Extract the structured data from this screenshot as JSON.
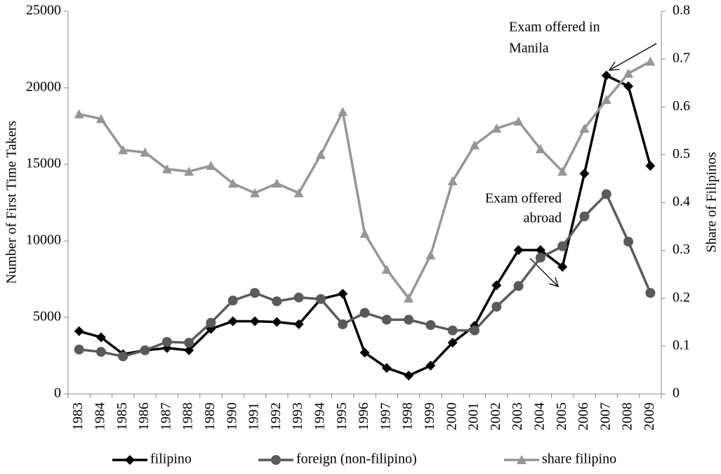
{
  "chart_data": {
    "type": "line",
    "y_label": "Number of First Time Takers",
    "y2_label": "Share of Filipinos",
    "categories": [
      "1983",
      "1984",
      "1985",
      "1986",
      "1987",
      "1988",
      "1989",
      "1990",
      "1991",
      "1992",
      "1993",
      "1994",
      "1995",
      "1996",
      "1997",
      "1998",
      "1999",
      "2000",
      "2001",
      "2002",
      "2003",
      "2004",
      "2005",
      "2006",
      "2007",
      "2008",
      "2009"
    ],
    "series": [
      {
        "name": "filipino",
        "color": "#000000",
        "marker": "diamond",
        "values": [
          4100,
          3700,
          2600,
          2850,
          3000,
          2850,
          4250,
          4750,
          4750,
          4700,
          4550,
          6200,
          6550,
          2700,
          1700,
          1200,
          1850,
          3350,
          4450,
          7100,
          9400,
          9400,
          8300,
          14400,
          20800,
          20100,
          14900
        ]
      },
      {
        "name": "foreign (non-filipino)",
        "color": "#5a5a5a",
        "marker": "circle",
        "values": [
          2900,
          2750,
          2450,
          2850,
          3400,
          3350,
          4650,
          6100,
          6600,
          6050,
          6300,
          6200,
          4550,
          5300,
          4850,
          4850,
          4500,
          4150,
          4150,
          5700,
          7050,
          8900,
          9650,
          11600,
          13050,
          9950,
          6600
        ]
      },
      {
        "name": "share filipino",
        "color": "#969696",
        "marker": "triangle",
        "axis": "y2",
        "values": [
          0.585,
          0.575,
          0.51,
          0.505,
          0.47,
          0.465,
          0.477,
          0.44,
          0.42,
          0.44,
          0.42,
          0.5,
          0.59,
          0.335,
          0.26,
          0.2,
          0.29,
          0.445,
          0.52,
          0.555,
          0.57,
          0.512,
          0.465,
          0.555,
          0.615,
          0.67,
          0.695
        ]
      }
    ],
    "ylim": [
      0,
      25000
    ],
    "yticks": [
      0,
      5000,
      10000,
      15000,
      20000,
      25000
    ],
    "y2lim": [
      0,
      0.8
    ],
    "y2ticks": [
      0,
      0.1,
      0.2,
      0.3,
      0.4,
      0.5,
      0.6,
      0.7,
      0.8
    ],
    "grid": false,
    "legend": "bottom",
    "annotations": [
      {
        "lines": [
          "Exam offered in",
          "Manila"
        ]
      },
      {
        "lines": [
          "Exam offered",
          "abroad"
        ]
      }
    ]
  }
}
